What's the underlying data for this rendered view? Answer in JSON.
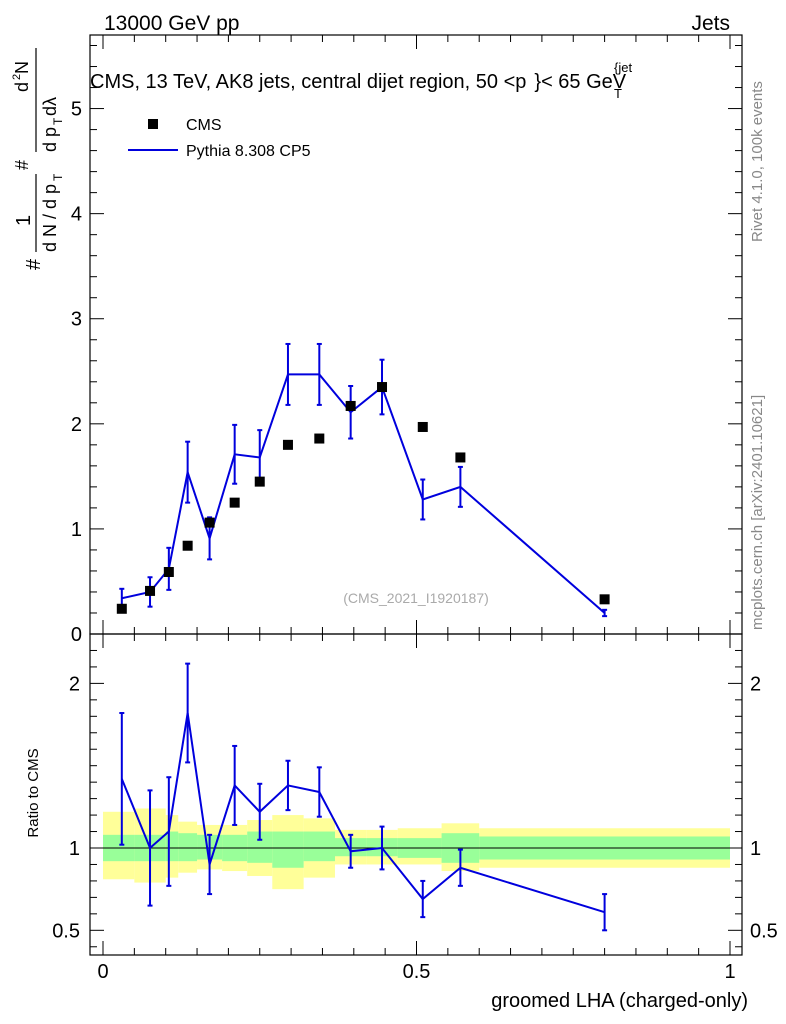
{
  "header": {
    "left": "13000 GeV pp",
    "right": "Jets"
  },
  "title": "CMS, 13 TeV, AK8 jets, central dijet region, 50 <p",
  "title_sup": "{jet",
  "title_sub": "T",
  "title_end": "}< 65 GeV",
  "side_labels": {
    "rivet": "Rivet 4.1.0,  100k events",
    "mcplots": "mcplots.cern.ch [arXiv:2401.10621]"
  },
  "watermark": "(CMS_2021_I1920187)",
  "ylabel_top": {
    "prefix": "#",
    "frac1_num": "1",
    "frac1_den": "d N / d p",
    "frac1_den_sub": "T",
    "hash2": "#",
    "frac2_num": "d",
    "frac2_num_sup": "2",
    "frac2_num_tail": "N",
    "frac2_den": "d p",
    "frac2_den_sub": "T",
    "frac2_den_tail": " dλ"
  },
  "ylabel_bottom": "Ratio to CMS",
  "xlabel": "groomed LHA (charged-only)",
  "legend": [
    {
      "label": "CMS",
      "type": "marker",
      "color": "#000000"
    },
    {
      "label": "Pythia 8.308 CP5",
      "type": "line",
      "color": "#0000dd"
    }
  ],
  "chart_data": {
    "type": "line",
    "x_ticks": [
      "0",
      "0.5",
      "1"
    ],
    "xlim": [
      0,
      1
    ],
    "main": {
      "ylim": [
        0,
        5.7
      ],
      "y_ticks": [
        "0",
        "1",
        "2",
        "3",
        "4",
        "5"
      ],
      "cms": {
        "x": [
          0.03,
          0.075,
          0.105,
          0.135,
          0.17,
          0.21,
          0.25,
          0.295,
          0.345,
          0.395,
          0.445,
          0.51,
          0.57,
          0.8
        ],
        "y": [
          0.24,
          0.41,
          0.59,
          0.84,
          1.06,
          1.25,
          1.45,
          1.8,
          1.86,
          2.17,
          2.35,
          1.97,
          1.68,
          0.33
        ]
      },
      "pythia": {
        "x": [
          0.03,
          0.075,
          0.105,
          0.135,
          0.17,
          0.21,
          0.25,
          0.295,
          0.345,
          0.395,
          0.445,
          0.51,
          0.57,
          0.8
        ],
        "y": [
          0.34,
          0.4,
          0.62,
          1.54,
          0.91,
          1.71,
          1.68,
          2.47,
          2.47,
          2.11,
          2.35,
          1.28,
          1.4,
          0.2
        ],
        "err": [
          0.09,
          0.14,
          0.2,
          0.29,
          0.2,
          0.28,
          0.26,
          0.29,
          0.29,
          0.25,
          0.26,
          0.19,
          0.19,
          0.03
        ]
      }
    },
    "ratio": {
      "ylim": [
        0.35,
        2.3
      ],
      "y_ticks": [
        "0.5",
        "1",
        "2"
      ],
      "pythia": {
        "x": [
          0.03,
          0.075,
          0.105,
          0.135,
          0.17,
          0.21,
          0.25,
          0.295,
          0.345,
          0.395,
          0.445,
          0.51,
          0.57,
          0.8
        ],
        "y": [
          1.42,
          1.0,
          1.1,
          1.82,
          0.9,
          1.38,
          1.22,
          1.38,
          1.34,
          0.98,
          1.0,
          0.69,
          0.88,
          0.61
        ],
        "err": [
          0.4,
          0.35,
          0.33,
          0.3,
          0.18,
          0.24,
          0.17,
          0.15,
          0.15,
          0.1,
          0.13,
          0.11,
          0.11,
          0.11
        ]
      },
      "bands": [
        {
          "x0": 0.0,
          "x1": 0.05,
          "inner": [
            0.92,
            1.08
          ],
          "outer": [
            0.81,
            1.22
          ]
        },
        {
          "x0": 0.05,
          "x1": 0.1,
          "inner": [
            0.92,
            1.08
          ],
          "outer": [
            0.79,
            1.24
          ]
        },
        {
          "x0": 0.1,
          "x1": 0.12,
          "inner": [
            0.92,
            1.1
          ],
          "outer": [
            0.82,
            1.2
          ]
        },
        {
          "x0": 0.12,
          "x1": 0.15,
          "inner": [
            0.92,
            1.09
          ],
          "outer": [
            0.85,
            1.16
          ]
        },
        {
          "x0": 0.15,
          "x1": 0.19,
          "inner": [
            0.93,
            1.08
          ],
          "outer": [
            0.87,
            1.14
          ]
        },
        {
          "x0": 0.19,
          "x1": 0.23,
          "inner": [
            0.92,
            1.08
          ],
          "outer": [
            0.86,
            1.14
          ]
        },
        {
          "x0": 0.23,
          "x1": 0.27,
          "inner": [
            0.91,
            1.1
          ],
          "outer": [
            0.83,
            1.17
          ]
        },
        {
          "x0": 0.27,
          "x1": 0.32,
          "inner": [
            0.88,
            1.1
          ],
          "outer": [
            0.75,
            1.2
          ]
        },
        {
          "x0": 0.32,
          "x1": 0.37,
          "inner": [
            0.92,
            1.1
          ],
          "outer": [
            0.82,
            1.18
          ]
        },
        {
          "x0": 0.37,
          "x1": 0.42,
          "inner": [
            0.95,
            1.06
          ],
          "outer": [
            0.9,
            1.11
          ]
        },
        {
          "x0": 0.42,
          "x1": 0.47,
          "inner": [
            0.95,
            1.06
          ],
          "outer": [
            0.9,
            1.11
          ]
        },
        {
          "x0": 0.47,
          "x1": 0.54,
          "inner": [
            0.94,
            1.06
          ],
          "outer": [
            0.9,
            1.12
          ]
        },
        {
          "x0": 0.54,
          "x1": 0.6,
          "inner": [
            0.91,
            1.09
          ],
          "outer": [
            0.86,
            1.15
          ]
        },
        {
          "x0": 0.6,
          "x1": 1.0,
          "inner": [
            0.93,
            1.07
          ],
          "outer": [
            0.88,
            1.12
          ]
        }
      ]
    }
  }
}
